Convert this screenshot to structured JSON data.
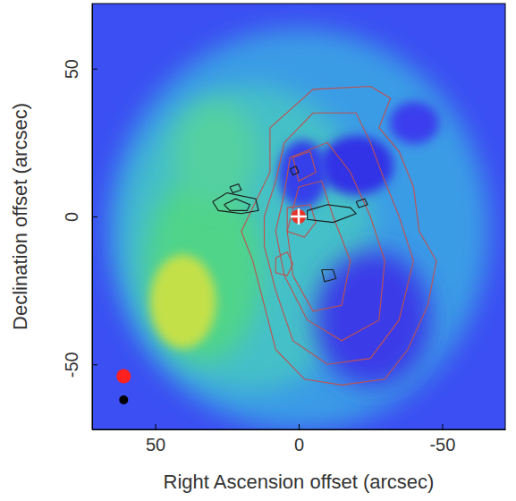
{
  "chart_data": {
    "type": "contour",
    "x_label": "Right Ascension offset (arcsec)",
    "y_label": "Declination offset (arcsec)",
    "xlim": [
      72,
      -72
    ],
    "ylim": [
      -72,
      72
    ],
    "xticks": [
      50,
      0,
      -50
    ],
    "yticks": [
      -50,
      0,
      50
    ],
    "series": [
      {
        "type": "line",
        "color": "#c0504d",
        "x": [
          10,
          -5,
          -25,
          -32,
          -28,
          -35,
          -40,
          -42,
          -48,
          -45,
          -38,
          -30,
          -15,
          -2,
          8,
          12,
          16,
          20,
          15,
          10,
          10
        ],
        "y": [
          30,
          43,
          44,
          40,
          30,
          22,
          10,
          -5,
          -15,
          -30,
          -45,
          -55,
          -57,
          -55,
          -45,
          -30,
          -15,
          -5,
          5,
          15,
          30
        ]
      },
      {
        "type": "line",
        "color": "#c0504d",
        "x": [
          5,
          -5,
          -20,
          -25,
          -30,
          -35,
          -40,
          -35,
          -25,
          -10,
          2,
          8,
          12,
          12,
          8,
          5
        ],
        "y": [
          25,
          35,
          35,
          25,
          12,
          0,
          -15,
          -35,
          -48,
          -50,
          -42,
          -25,
          -10,
          0,
          12,
          25
        ]
      },
      {
        "type": "line",
        "color": "#c0504d",
        "x": [
          3,
          -10,
          -18,
          -25,
          -30,
          -28,
          -15,
          -3,
          5,
          8,
          5,
          3
        ],
        "y": [
          20,
          25,
          15,
          0,
          -15,
          -35,
          -42,
          -35,
          -20,
          -5,
          8,
          20
        ]
      },
      {
        "type": "line",
        "color": "#c0504d",
        "x": [
          0,
          -8,
          -12,
          -18,
          -15,
          -5,
          2,
          4,
          0
        ],
        "y": [
          10,
          12,
          0,
          -15,
          -30,
          -32,
          -20,
          -5,
          10
        ]
      },
      {
        "type": "line",
        "color": "#c0504d",
        "x": [
          8,
          4,
          2,
          4,
          8,
          8
        ],
        "y": [
          -14,
          -12,
          -16,
          -20,
          -19,
          -14
        ]
      },
      {
        "type": "line",
        "color": "#c0504d",
        "x": [
          4,
          -4,
          -6,
          -2,
          4,
          4
        ],
        "y": [
          3,
          4,
          -2,
          -7,
          -5,
          3
        ]
      },
      {
        "type": "line",
        "color": "#c0504d",
        "x": [
          2,
          -4,
          -6,
          0,
          2
        ],
        "y": [
          20,
          22,
          15,
          12,
          20
        ]
      },
      {
        "type": "line",
        "color": "#1a1a1a",
        "x": [
          30,
          25,
          15,
          14,
          20,
          28,
          30
        ],
        "y": [
          5,
          8,
          6,
          2,
          1,
          2,
          5
        ]
      },
      {
        "type": "line",
        "color": "#1a1a1a",
        "x": [
          26,
          22,
          17,
          18,
          24,
          26
        ],
        "y": [
          4,
          6,
          4,
          2,
          2,
          4
        ]
      },
      {
        "type": "line",
        "color": "#1a1a1a",
        "x": [
          -3,
          -10,
          -18,
          -20,
          -12,
          -3,
          -3
        ],
        "y": [
          2,
          4,
          3,
          1,
          -2,
          -1,
          2
        ]
      },
      {
        "type": "line",
        "color": "#1a1a1a",
        "x": [
          -8,
          -12,
          -13,
          -9,
          -8
        ],
        "y": [
          -18,
          -18,
          -21,
          -22,
          -18
        ]
      },
      {
        "type": "line",
        "color": "#1a1a1a",
        "x": [
          -20,
          -23,
          -24,
          -21,
          -20
        ],
        "y": [
          5,
          6,
          4,
          3,
          5
        ]
      },
      {
        "type": "line",
        "color": "#1a1a1a",
        "x": [
          3,
          1,
          0,
          2,
          3
        ],
        "y": [
          16,
          17,
          15,
          14,
          16
        ]
      },
      {
        "type": "line",
        "color": "#1a1a1a",
        "x": [
          24,
          21,
          20,
          23,
          24
        ],
        "y": [
          10,
          11,
          9,
          8,
          10
        ]
      },
      {
        "type": "scatter",
        "marker": "circle",
        "color": "#e8332a",
        "x": [
          0
        ],
        "y": [
          0
        ]
      },
      {
        "type": "scatter",
        "marker": "cross",
        "color": "#ffffff",
        "x": [
          0
        ],
        "y": [
          0
        ]
      },
      {
        "type": "scatter",
        "marker": "circle",
        "color": "#ff2020",
        "x": [
          61
        ],
        "y": [
          -54
        ]
      },
      {
        "type": "scatter",
        "marker": "circle",
        "color": "#000000",
        "x": [
          61
        ],
        "y": [
          -62
        ]
      }
    ]
  }
}
